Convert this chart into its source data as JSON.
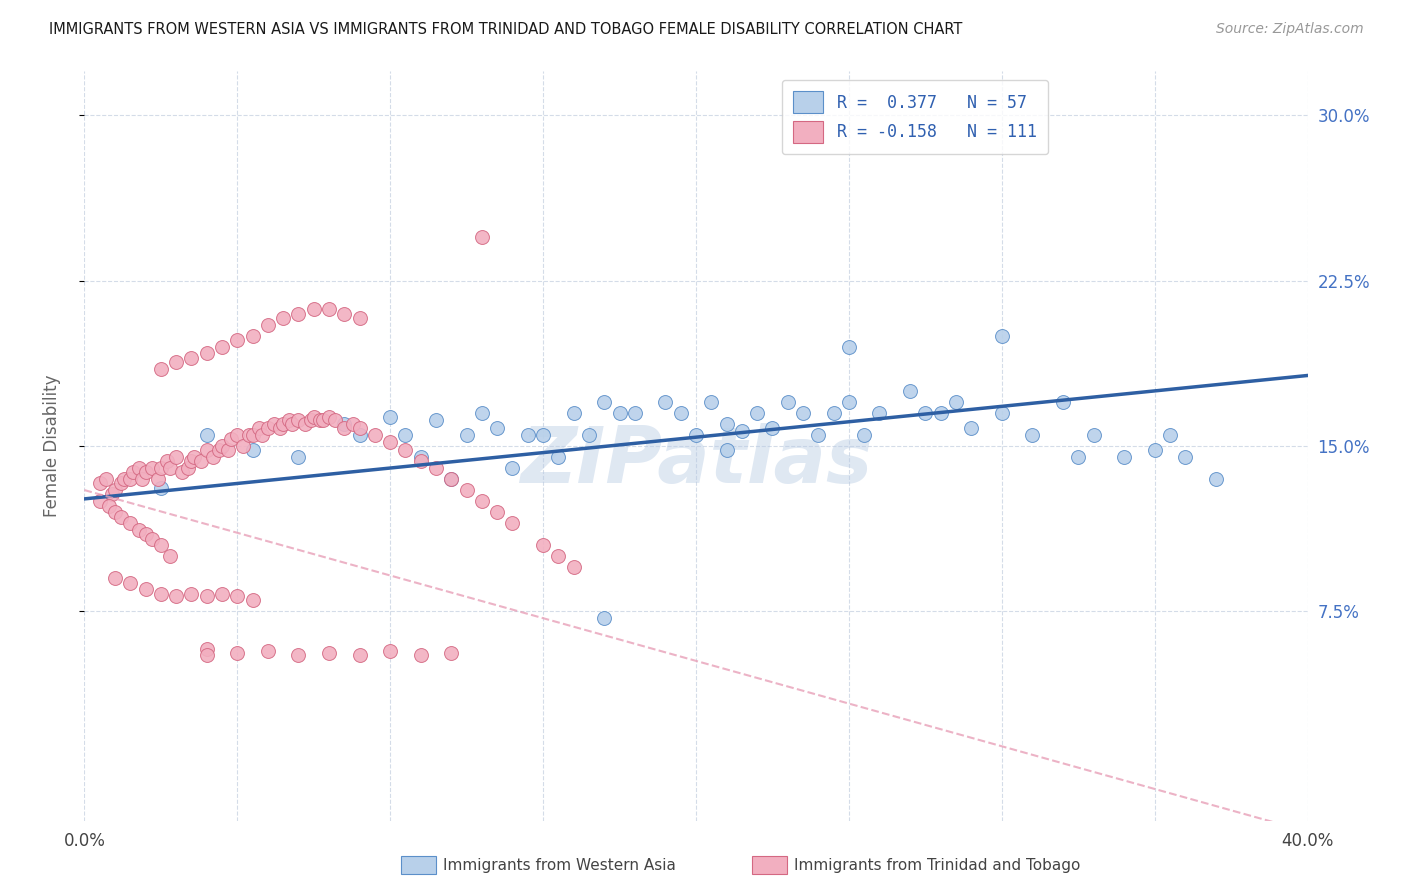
{
  "title": "IMMIGRANTS FROM WESTERN ASIA VS IMMIGRANTS FROM TRINIDAD AND TOBAGO FEMALE DISABILITY CORRELATION CHART",
  "source": "Source: ZipAtlas.com",
  "ylabel": "Female Disability",
  "ytick_vals": [
    0.075,
    0.15,
    0.225,
    0.3
  ],
  "ytick_labels": [
    "7.5%",
    "15.0%",
    "22.5%",
    "30.0%"
  ],
  "xlim": [
    0.0,
    0.4
  ],
  "ylim": [
    -0.02,
    0.32
  ],
  "color_blue": "#b8d0ea",
  "color_pink": "#f2afc0",
  "edge_blue": "#5b8fc9",
  "edge_pink": "#d46882",
  "line_blue": "#2e5fa3",
  "line_pink": "#e8a0b8",
  "watermark": "ZIPatlas",
  "legend_label1": "Immigrants from Western Asia",
  "legend_label2": "Immigrants from Trinidad and Tobago",
  "blue_line_x0": 0.0,
  "blue_line_y0": 0.126,
  "blue_line_x1": 0.4,
  "blue_line_y1": 0.182,
  "pink_line_x0": 0.0,
  "pink_line_y0": 0.13,
  "pink_line_x1": 0.4,
  "pink_line_y1": -0.025,
  "blue_x": [
    0.025,
    0.04,
    0.055,
    0.07,
    0.085,
    0.09,
    0.1,
    0.105,
    0.11,
    0.115,
    0.12,
    0.125,
    0.13,
    0.135,
    0.14,
    0.145,
    0.15,
    0.155,
    0.16,
    0.165,
    0.17,
    0.175,
    0.18,
    0.19,
    0.195,
    0.2,
    0.205,
    0.21,
    0.215,
    0.22,
    0.225,
    0.23,
    0.235,
    0.24,
    0.245,
    0.25,
    0.255,
    0.26,
    0.27,
    0.275,
    0.28,
    0.285,
    0.29,
    0.3,
    0.31,
    0.32,
    0.325,
    0.33,
    0.34,
    0.35,
    0.355,
    0.36,
    0.37,
    0.25,
    0.3,
    0.21,
    0.17
  ],
  "blue_y": [
    0.131,
    0.155,
    0.148,
    0.145,
    0.16,
    0.155,
    0.163,
    0.155,
    0.145,
    0.162,
    0.135,
    0.155,
    0.165,
    0.158,
    0.14,
    0.155,
    0.155,
    0.145,
    0.165,
    0.155,
    0.17,
    0.165,
    0.165,
    0.17,
    0.165,
    0.155,
    0.17,
    0.16,
    0.157,
    0.165,
    0.158,
    0.17,
    0.165,
    0.155,
    0.165,
    0.17,
    0.155,
    0.165,
    0.175,
    0.165,
    0.165,
    0.17,
    0.158,
    0.165,
    0.155,
    0.17,
    0.145,
    0.155,
    0.145,
    0.148,
    0.155,
    0.145,
    0.135,
    0.195,
    0.2,
    0.148,
    0.072
  ],
  "pink_x": [
    0.005,
    0.007,
    0.009,
    0.01,
    0.012,
    0.013,
    0.015,
    0.016,
    0.018,
    0.019,
    0.02,
    0.022,
    0.024,
    0.025,
    0.027,
    0.028,
    0.03,
    0.032,
    0.034,
    0.035,
    0.036,
    0.038,
    0.04,
    0.042,
    0.044,
    0.045,
    0.047,
    0.048,
    0.05,
    0.052,
    0.054,
    0.055,
    0.057,
    0.058,
    0.06,
    0.062,
    0.064,
    0.065,
    0.067,
    0.068,
    0.07,
    0.072,
    0.074,
    0.075,
    0.077,
    0.078,
    0.08,
    0.082,
    0.085,
    0.088,
    0.09,
    0.095,
    0.1,
    0.105,
    0.11,
    0.115,
    0.12,
    0.125,
    0.13,
    0.135,
    0.14,
    0.15,
    0.155,
    0.16,
    0.025,
    0.03,
    0.035,
    0.04,
    0.045,
    0.05,
    0.055,
    0.06,
    0.065,
    0.07,
    0.075,
    0.08,
    0.085,
    0.09,
    0.01,
    0.015,
    0.02,
    0.025,
    0.03,
    0.035,
    0.04,
    0.045,
    0.05,
    0.055,
    0.005,
    0.008,
    0.01,
    0.012,
    0.015,
    0.018,
    0.02,
    0.022,
    0.025,
    0.028,
    0.13,
    0.04,
    0.05,
    0.06,
    0.07,
    0.08,
    0.09,
    0.1,
    0.11,
    0.12,
    0.04
  ],
  "pink_y": [
    0.133,
    0.135,
    0.128,
    0.13,
    0.133,
    0.135,
    0.135,
    0.138,
    0.14,
    0.135,
    0.138,
    0.14,
    0.135,
    0.14,
    0.143,
    0.14,
    0.145,
    0.138,
    0.14,
    0.143,
    0.145,
    0.143,
    0.148,
    0.145,
    0.148,
    0.15,
    0.148,
    0.153,
    0.155,
    0.15,
    0.155,
    0.155,
    0.158,
    0.155,
    0.158,
    0.16,
    0.158,
    0.16,
    0.162,
    0.16,
    0.162,
    0.16,
    0.162,
    0.163,
    0.162,
    0.162,
    0.163,
    0.162,
    0.158,
    0.16,
    0.158,
    0.155,
    0.152,
    0.148,
    0.143,
    0.14,
    0.135,
    0.13,
    0.125,
    0.12,
    0.115,
    0.105,
    0.1,
    0.095,
    0.185,
    0.188,
    0.19,
    0.192,
    0.195,
    0.198,
    0.2,
    0.205,
    0.208,
    0.21,
    0.212,
    0.212,
    0.21,
    0.208,
    0.09,
    0.088,
    0.085,
    0.083,
    0.082,
    0.083,
    0.082,
    0.083,
    0.082,
    0.08,
    0.125,
    0.123,
    0.12,
    0.118,
    0.115,
    0.112,
    0.11,
    0.108,
    0.105,
    0.1,
    0.245,
    0.058,
    0.056,
    0.057,
    0.055,
    0.056,
    0.055,
    0.057,
    0.055,
    0.056,
    0.055
  ]
}
